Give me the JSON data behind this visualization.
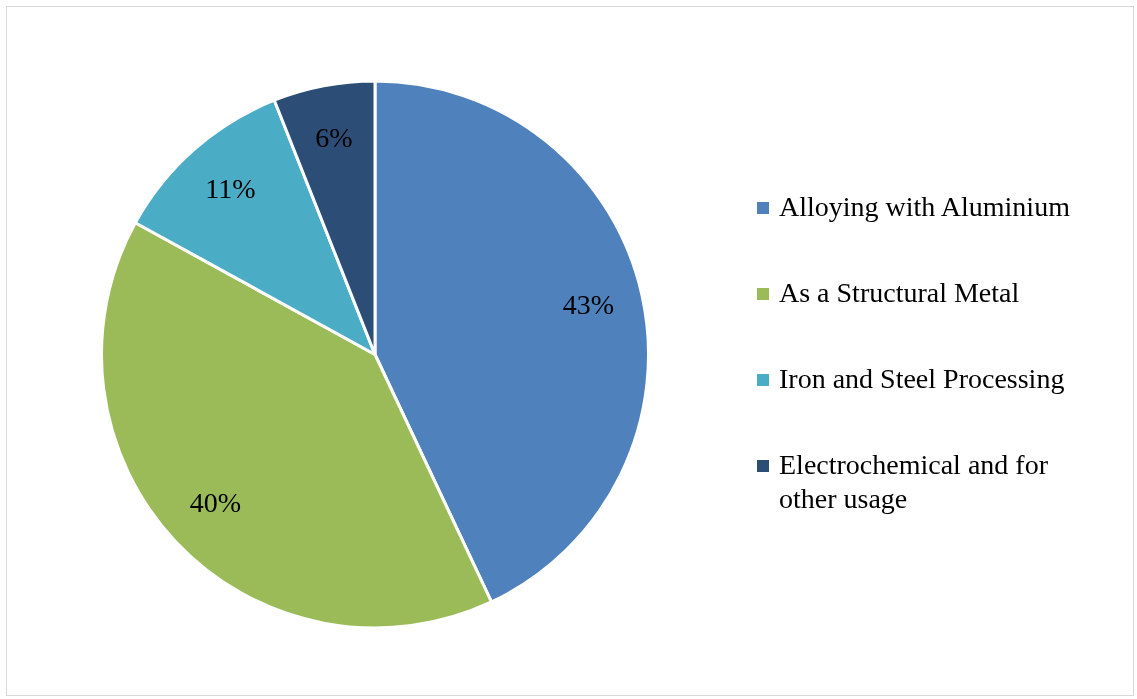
{
  "chart_data": {
    "type": "pie",
    "categories": [
      "Alloying with Aluminium",
      "As a Structural Metal",
      "Iron and Steel Processing",
      "Electrochemical and for other usage"
    ],
    "values": [
      43,
      40,
      11,
      6
    ],
    "colors": [
      "#4f81bd",
      "#9bbb59",
      "#4bacc6",
      "#2c4d75"
    ],
    "value_labels": [
      "43%",
      "40%",
      "11%",
      "6%"
    ],
    "legend": "right"
  }
}
